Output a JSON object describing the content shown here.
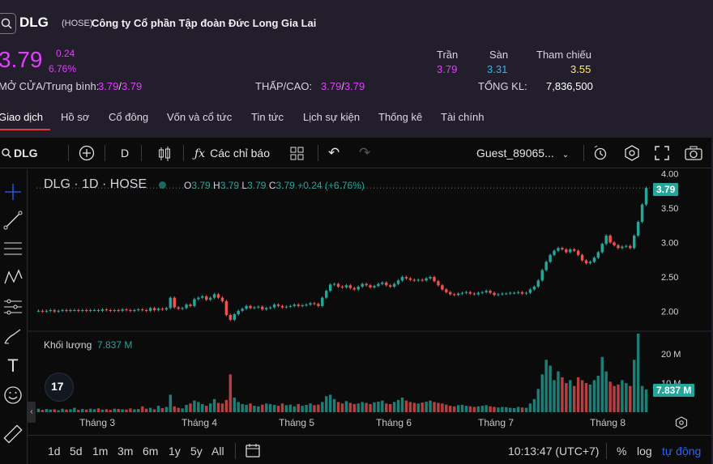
{
  "header": {
    "symbol": "DLG",
    "exchange": "(HOSE)",
    "company": "Công ty Cổ phần Tập đoàn Đức Long Gia Lai",
    "price": "3.79",
    "change": "0.24",
    "change_pct": "6.76%",
    "ceiling_label": "Trần",
    "ceiling": "3.79",
    "floor_label": "Sàn",
    "floor": "3.31",
    "ref_label": "Tham chiếu",
    "ref": "3.55",
    "open_avg_label": "MỞ CỬA/Trung bình:",
    "open": "3.79",
    "avg": "3.79",
    "low_high_label": "THẤP/CAO:",
    "low": "3.79",
    "high": "3.79",
    "total_vol_label": "TỔNG KL:",
    "total_vol": "7,836,500",
    "slash": "/"
  },
  "tabs": [
    "Giao dịch",
    "Hồ sơ",
    "Cổ đông",
    "Vốn và cổ tức",
    "Tin tức",
    "Lịch sự kiện",
    "Thống kê",
    "Tài chính"
  ],
  "toolbar": {
    "symbol": "DLG",
    "interval": "D",
    "indicators": "Các chỉ báo",
    "user": "Guest_89065..."
  },
  "legend": {
    "title": "DLG · 1D · HOSE",
    "o_label": "O",
    "o": "3.79",
    "h_label": "H",
    "h": "3.79",
    "l_label": "L",
    "l": "3.79",
    "c_label": "C",
    "c": "3.79",
    "chg": "+0.24 (+6.76%)"
  },
  "volume": {
    "label": "Khối lượng",
    "value": "7.837 M",
    "tag": "7.837 M"
  },
  "price_tag": "3.79",
  "chart_data": {
    "type": "candlestick",
    "y_ticks": [
      "4.00",
      "3.50",
      "3.00",
      "2.50",
      "2.00"
    ],
    "vol_ticks": [
      "20 M",
      "10 M"
    ],
    "x_labels": [
      "Tháng 3",
      "Tháng 4",
      "Tháng 5",
      "Tháng 6",
      "Tháng 7",
      "Tháng 8"
    ],
    "ylim": [
      1.75,
      4.05
    ],
    "vol_max": 27,
    "colors": {
      "up": "#26a69a",
      "down": "#ef5350"
    },
    "closes": [
      2.01,
      2.0,
      2.01,
      2.02,
      2.0,
      2.01,
      2.02,
      2.01,
      2.02,
      2.02,
      2.01,
      2.02,
      2.01,
      2.02,
      2.02,
      2.01,
      2.03,
      2.02,
      2.01,
      2.02,
      2.01,
      2.03,
      2.02,
      2.01,
      2.02,
      2.03,
      2.02,
      2.01,
      2.05,
      2.02,
      2.04,
      2.03,
      2.05,
      2.2,
      2.06,
      2.04,
      2.05,
      2.1,
      2.08,
      2.18,
      2.2,
      2.22,
      2.17,
      2.2,
      2.25,
      2.2,
      2.15,
      1.95,
      1.88,
      1.96,
      2.01,
      2.04,
      2.08,
      2.05,
      2.06,
      2.07,
      2.03,
      2.05,
      2.06,
      2.1,
      2.08,
      2.06,
      2.07,
      2.08,
      2.1,
      2.08,
      2.09,
      2.1,
      2.12,
      2.11,
      2.08,
      2.2,
      2.3,
      2.39,
      2.4,
      2.36,
      2.35,
      2.38,
      2.34,
      2.32,
      2.36,
      2.4,
      2.38,
      2.35,
      2.37,
      2.4,
      2.42,
      2.38,
      2.36,
      2.4,
      2.45,
      2.5,
      2.48,
      2.46,
      2.45,
      2.46,
      2.45,
      2.48,
      2.5,
      2.44,
      2.38,
      2.32,
      2.28,
      2.25,
      2.24,
      2.26,
      2.27,
      2.28,
      2.26,
      2.25,
      2.27,
      2.28,
      2.3,
      2.27,
      2.24,
      2.25,
      2.26,
      2.26,
      2.27,
      2.27,
      2.28,
      2.26,
      2.27,
      2.32,
      2.36,
      2.45,
      2.6,
      2.72,
      2.82,
      2.88,
      2.92,
      2.9,
      2.86,
      2.9,
      2.88,
      2.82,
      2.74,
      2.7,
      2.72,
      2.78,
      2.86,
      2.98,
      3.1,
      3.0,
      2.96,
      2.92,
      2.94,
      2.95,
      2.92,
      3.1,
      3.3,
      3.55,
      3.79
    ],
    "volumes": [
      1.2,
      0.8,
      1.1,
      0.9,
      1.0,
      0.7,
      1.2,
      0.9,
      1.0,
      1.5,
      0.8,
      1.1,
      0.9,
      1.2,
      1.0,
      1.3,
      0.9,
      1.0,
      0.8,
      1.2,
      1.1,
      1.0,
      0.9,
      1.3,
      1.0,
      1.1,
      2.0,
      1.2,
      1.5,
      1.0,
      2.2,
      1.4,
      1.8,
      6.0,
      2.0,
      1.5,
      1.3,
      2.5,
      3.0,
      4.0,
      3.5,
      2.8,
      2.2,
      3.0,
      4.5,
      3.2,
      3.0,
      4.2,
      13.0,
      5.0,
      3.5,
      2.8,
      2.5,
      3.0,
      2.2,
      2.0,
      2.6,
      3.0,
      2.8,
      2.5,
      2.2,
      3.0,
      2.4,
      2.6,
      2.0,
      2.8,
      2.2,
      2.5,
      3.0,
      2.4,
      2.6,
      3.5,
      5.5,
      6.0,
      4.5,
      3.5,
      3.0,
      3.8,
      3.2,
      2.8,
      3.0,
      3.5,
      3.2,
      2.8,
      3.4,
      3.6,
      4.0,
      3.0,
      2.8,
      3.5,
      4.2,
      5.0,
      4.0,
      3.5,
      3.2,
      3.0,
      3.3,
      3.6,
      4.0,
      3.5,
      3.2,
      3.0,
      2.6,
      2.2,
      2.0,
      2.4,
      2.5,
      2.2,
      2.0,
      1.8,
      2.0,
      2.2,
      2.4,
      2.0,
      1.8,
      1.6,
      1.8,
      1.7,
      1.5,
      1.4,
      1.8,
      1.6,
      1.5,
      3.0,
      4.5,
      8.0,
      13.0,
      18.0,
      16.0,
      11.0,
      14.0,
      12.0,
      10.0,
      11.0,
      9.0,
      12.0,
      11.0,
      10.0,
      9.5,
      11.0,
      12.5,
      19.0,
      14.0,
      10.5,
      9.0,
      9.5,
      11.0,
      10.0,
      9.0,
      18.0,
      27.0,
      9.0,
      7.837
    ]
  },
  "bottom": {
    "ranges": [
      "1d",
      "5d",
      "1m",
      "3m",
      "6m",
      "1y",
      "5y",
      "All"
    ],
    "time": "10:13:47 (UTC+7)",
    "pct": "%",
    "log": "log",
    "auto": "tự động"
  }
}
